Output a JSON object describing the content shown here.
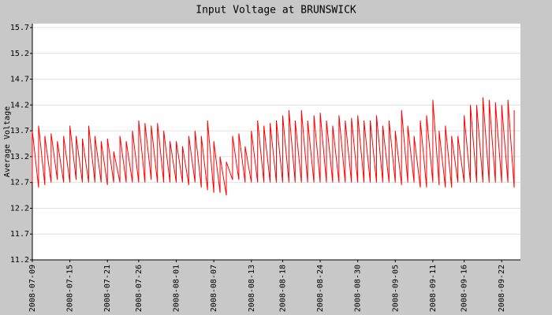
{
  "chart_data": {
    "type": "line",
    "title": "Input Voltage at BRUNSWICK",
    "y_label": "Average Voltage",
    "color": "#ff0000",
    "grid": true,
    "xlim": [
      "2008-07-09",
      "2008-09-25"
    ],
    "xticks": [
      "2008-07-09",
      "2008-07-15",
      "2008-07-21",
      "2008-07-26",
      "2008-08-01",
      "2008-08-07",
      "2008-08-13",
      "2008-08-18",
      "2008-08-24",
      "2008-08-30",
      "2008-09-05",
      "2008-09-11",
      "2008-09-16",
      "2008-09-22"
    ],
    "ylim": [
      11.2,
      15.7
    ],
    "yticks": [
      11.2,
      11.7,
      12.2,
      12.7,
      13.2,
      13.7,
      14.2,
      14.7,
      15.2,
      15.7
    ],
    "x": [
      "2008-07-09",
      "2008-07-09",
      "2008-07-10",
      "2008-07-10",
      "2008-07-11",
      "2008-07-11",
      "2008-07-12",
      "2008-07-12",
      "2008-07-13",
      "2008-07-13",
      "2008-07-14",
      "2008-07-14",
      "2008-07-15",
      "2008-07-15",
      "2008-07-16",
      "2008-07-16",
      "2008-07-17",
      "2008-07-17",
      "2008-07-18",
      "2008-07-18",
      "2008-07-19",
      "2008-07-19",
      "2008-07-20",
      "2008-07-20",
      "2008-07-21",
      "2008-07-21",
      "2008-07-22",
      "2008-07-22",
      "2008-07-23",
      "2008-07-23",
      "2008-07-24",
      "2008-07-24",
      "2008-07-25",
      "2008-07-25",
      "2008-07-26",
      "2008-07-26",
      "2008-07-27",
      "2008-07-27",
      "2008-07-28",
      "2008-07-28",
      "2008-07-29",
      "2008-07-29",
      "2008-07-30",
      "2008-07-30",
      "2008-07-31",
      "2008-07-31",
      "2008-08-01",
      "2008-08-01",
      "2008-08-02",
      "2008-08-02",
      "2008-08-03",
      "2008-08-03",
      "2008-08-04",
      "2008-08-04",
      "2008-08-05",
      "2008-08-05",
      "2008-08-06",
      "2008-08-06",
      "2008-08-07",
      "2008-08-07",
      "2008-08-08",
      "2008-08-08",
      "2008-08-09",
      "2008-08-09",
      "2008-08-10",
      "2008-08-10",
      "2008-08-11",
      "2008-08-11",
      "2008-08-12",
      "2008-08-12",
      "2008-08-13",
      "2008-08-13",
      "2008-08-14",
      "2008-08-14",
      "2008-08-15",
      "2008-08-15",
      "2008-08-16",
      "2008-08-16",
      "2008-08-17",
      "2008-08-17",
      "2008-08-18",
      "2008-08-18",
      "2008-08-19",
      "2008-08-19",
      "2008-08-20",
      "2008-08-20",
      "2008-08-21",
      "2008-08-21",
      "2008-08-22",
      "2008-08-22",
      "2008-08-23",
      "2008-08-23",
      "2008-08-24",
      "2008-08-24",
      "2008-08-25",
      "2008-08-25",
      "2008-08-26",
      "2008-08-26",
      "2008-08-27",
      "2008-08-27",
      "2008-08-28",
      "2008-08-28",
      "2008-08-29",
      "2008-08-29",
      "2008-08-30",
      "2008-08-30",
      "2008-08-31",
      "2008-08-31",
      "2008-09-01",
      "2008-09-01",
      "2008-09-02",
      "2008-09-02",
      "2008-09-03",
      "2008-09-03",
      "2008-09-04",
      "2008-09-04",
      "2008-09-05",
      "2008-09-05",
      "2008-09-06",
      "2008-09-06",
      "2008-09-07",
      "2008-09-07",
      "2008-09-08",
      "2008-09-08",
      "2008-09-09",
      "2008-09-09",
      "2008-09-10",
      "2008-09-10",
      "2008-09-11",
      "2008-09-11",
      "2008-09-12",
      "2008-09-12",
      "2008-09-13",
      "2008-09-13",
      "2008-09-14",
      "2008-09-14",
      "2008-09-15",
      "2008-09-15",
      "2008-09-16",
      "2008-09-16",
      "2008-09-17",
      "2008-09-17",
      "2008-09-18",
      "2008-09-18",
      "2008-09-19",
      "2008-09-19",
      "2008-09-20",
      "2008-09-20",
      "2008-09-21",
      "2008-09-21",
      "2008-09-22",
      "2008-09-22",
      "2008-09-23",
      "2008-09-23",
      "2008-09-24",
      "2008-09-24"
    ],
    "values": [
      12.7,
      13.7,
      12.6,
      13.8,
      12.65,
      13.6,
      12.7,
      13.65,
      12.75,
      13.5,
      12.7,
      13.6,
      12.7,
      13.8,
      12.75,
      13.6,
      12.7,
      13.55,
      12.7,
      13.8,
      12.7,
      13.6,
      12.7,
      13.5,
      12.65,
      13.55,
      12.7,
      13.3,
      12.7,
      13.6,
      12.7,
      13.5,
      12.7,
      13.7,
      12.7,
      13.9,
      12.7,
      13.85,
      12.75,
      13.8,
      12.7,
      13.85,
      12.7,
      13.7,
      12.7,
      13.5,
      12.7,
      13.5,
      12.7,
      13.4,
      12.65,
      13.6,
      12.7,
      13.7,
      12.6,
      13.6,
      12.55,
      13.9,
      12.5,
      13.5,
      12.5,
      13.2,
      12.45,
      13.1,
      12.75,
      13.6,
      12.75,
      13.65,
      12.7,
      13.4,
      12.7,
      13.7,
      12.7,
      13.9,
      12.7,
      13.8,
      12.7,
      13.85,
      12.7,
      13.9,
      12.7,
      14.0,
      12.7,
      14.1,
      12.7,
      13.9,
      12.7,
      14.1,
      12.7,
      13.9,
      12.7,
      14.0,
      12.7,
      14.05,
      12.7,
      13.9,
      12.7,
      13.8,
      12.7,
      14.0,
      12.7,
      13.9,
      12.7,
      13.95,
      12.7,
      14.0,
      12.7,
      13.9,
      12.7,
      13.9,
      12.7,
      14.0,
      12.7,
      13.8,
      12.7,
      13.9,
      12.7,
      13.7,
      12.65,
      14.1,
      12.7,
      13.8,
      12.7,
      13.6,
      12.6,
      13.9,
      12.6,
      14.0,
      12.7,
      14.3,
      12.65,
      13.7,
      12.6,
      13.8,
      12.6,
      13.6,
      12.7,
      13.6,
      12.7,
      14.0,
      12.7,
      14.2,
      12.7,
      14.2,
      12.7,
      14.35,
      12.7,
      14.3,
      12.7,
      14.25,
      12.7,
      14.2,
      12.7,
      14.3,
      12.6,
      14.1
    ]
  }
}
